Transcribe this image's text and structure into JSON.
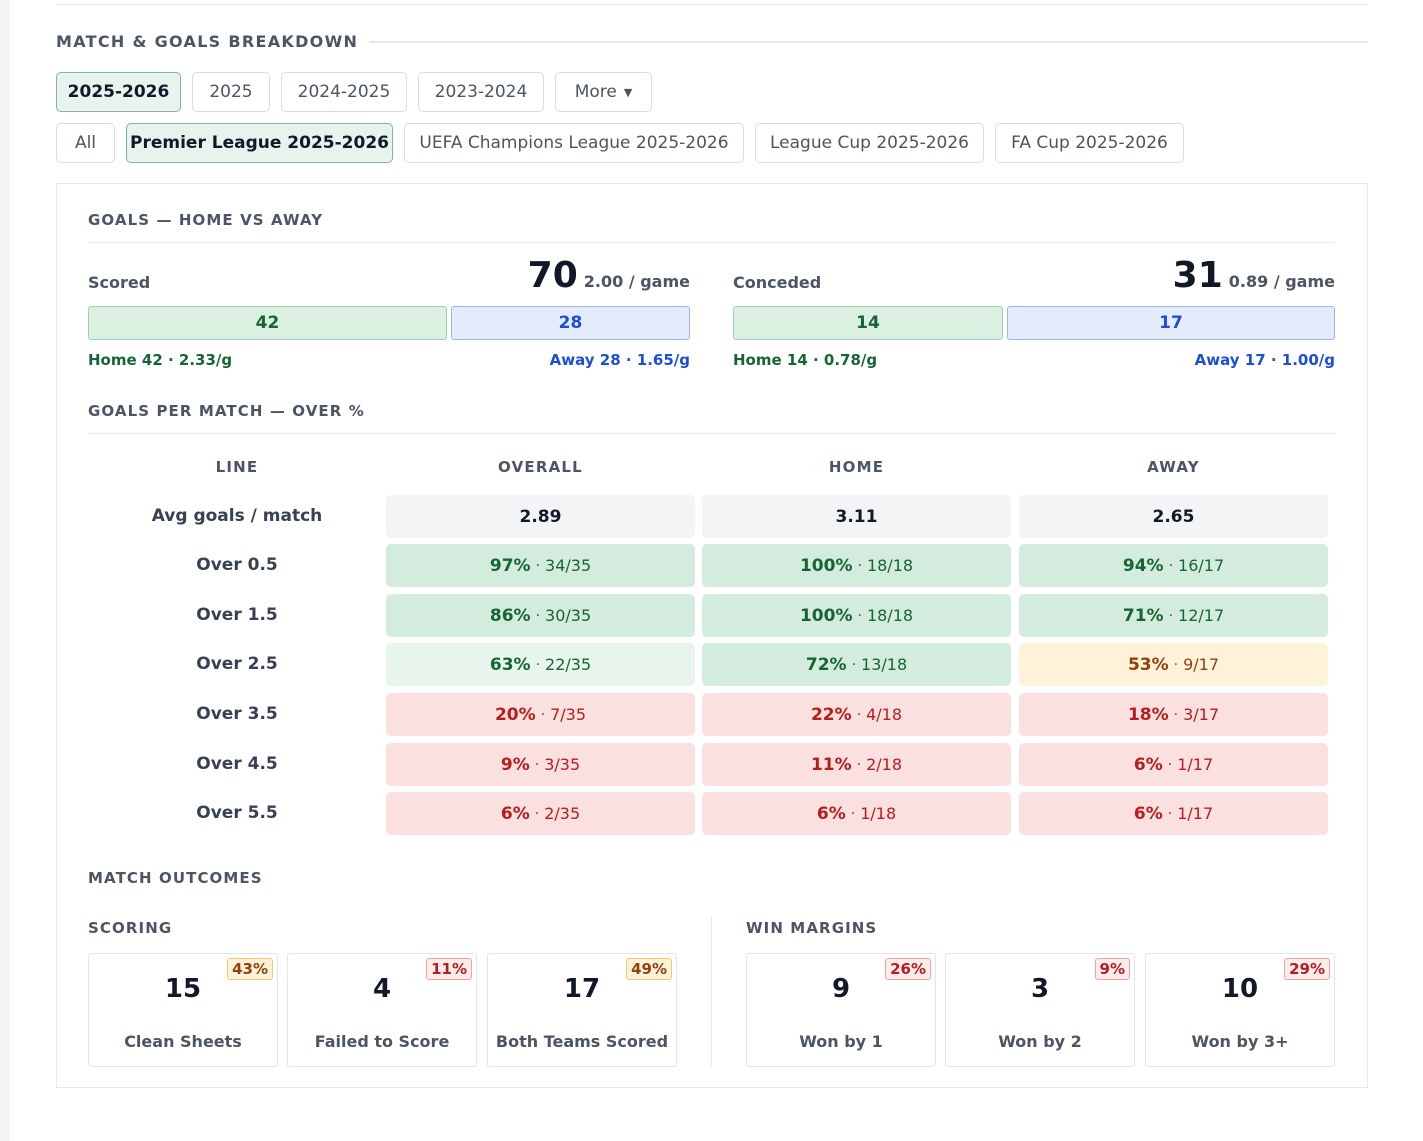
{
  "section": {
    "title": "MATCH & GOALS BREAKDOWN"
  },
  "seasons": [
    {
      "label": "2025-2026",
      "active": true
    },
    {
      "label": "2025",
      "active": false
    },
    {
      "label": "2024-2025",
      "active": false
    },
    {
      "label": "2023-2024",
      "active": false
    },
    {
      "label": "More",
      "active": false
    }
  ],
  "competitions": [
    {
      "label": "All",
      "active": false
    },
    {
      "label": "Premier League 2025-2026",
      "active": true
    },
    {
      "label": "UEFA Champions League 2025-2026",
      "active": false
    },
    {
      "label": "League Cup 2025-2026",
      "active": false
    },
    {
      "label": "FA Cup 2025-2026",
      "active": false
    }
  ],
  "home_away": {
    "title": "GOALS — HOME VS AWAY",
    "scored": {
      "label": "Scored",
      "total": "70",
      "per_game": "2.00 / game",
      "home": "42",
      "away": "28",
      "home_share": 0.6,
      "home_note": "Home 42 · 2.33/g",
      "away_note": "Away 28 · 1.65/g"
    },
    "conceded": {
      "label": "Conceded",
      "total": "31",
      "per_game": "0.89 / game",
      "home": "14",
      "away": "17",
      "home_share": 0.452,
      "home_note": "Home 14 · 0.78/g",
      "away_note": "Away 17 · 1.00/g"
    }
  },
  "over_table": {
    "title": "GOALS PER MATCH — OVER %",
    "headers": [
      "LINE",
      "OVERALL",
      "HOME",
      "AWAY"
    ],
    "avg": {
      "label": "Avg goals / match",
      "overall": "2.89",
      "home": "3.11",
      "away": "2.65"
    },
    "rows": [
      {
        "label": "Over 0.5",
        "overall": {
          "pct": "97%",
          "frac": "34/35",
          "tone": "green-strong"
        },
        "home": {
          "pct": "100%",
          "frac": "18/18",
          "tone": "green-strong"
        },
        "away": {
          "pct": "94%",
          "frac": "16/17",
          "tone": "green-strong"
        }
      },
      {
        "label": "Over 1.5",
        "overall": {
          "pct": "86%",
          "frac": "30/35",
          "tone": "green-strong"
        },
        "home": {
          "pct": "100%",
          "frac": "18/18",
          "tone": "green-strong"
        },
        "away": {
          "pct": "71%",
          "frac": "12/17",
          "tone": "green-strong"
        }
      },
      {
        "label": "Over 2.5",
        "overall": {
          "pct": "63%",
          "frac": "22/35",
          "tone": "green-light"
        },
        "home": {
          "pct": "72%",
          "frac": "13/18",
          "tone": "green-strong"
        },
        "away": {
          "pct": "53%",
          "frac": "9/17",
          "tone": "yellow"
        }
      },
      {
        "label": "Over 3.5",
        "overall": {
          "pct": "20%",
          "frac": "7/35",
          "tone": "red"
        },
        "home": {
          "pct": "22%",
          "frac": "4/18",
          "tone": "red"
        },
        "away": {
          "pct": "18%",
          "frac": "3/17",
          "tone": "red"
        }
      },
      {
        "label": "Over 4.5",
        "overall": {
          "pct": "9%",
          "frac": "3/35",
          "tone": "red"
        },
        "home": {
          "pct": "11%",
          "frac": "2/18",
          "tone": "red"
        },
        "away": {
          "pct": "6%",
          "frac": "1/17",
          "tone": "red"
        }
      },
      {
        "label": "Over 5.5",
        "overall": {
          "pct": "6%",
          "frac": "2/35",
          "tone": "red"
        },
        "home": {
          "pct": "6%",
          "frac": "1/18",
          "tone": "red"
        },
        "away": {
          "pct": "6%",
          "frac": "1/17",
          "tone": "red"
        }
      }
    ]
  },
  "outcomes": {
    "title": "MATCH OUTCOMES",
    "scoring": {
      "title": "SCORING",
      "items": [
        {
          "value": "15",
          "label": "Clean Sheets",
          "badge": "43%",
          "tone": "yellow"
        },
        {
          "value": "4",
          "label": "Failed to Score",
          "badge": "11%",
          "tone": "red"
        },
        {
          "value": "17",
          "label": "Both Teams Scored",
          "badge": "49%",
          "tone": "yellow"
        }
      ]
    },
    "margins": {
      "title": "WIN MARGINS",
      "items": [
        {
          "value": "9",
          "label": "Won by 1",
          "badge": "26%",
          "tone": "red"
        },
        {
          "value": "3",
          "label": "Won by 2",
          "badge": "9%",
          "tone": "red"
        },
        {
          "value": "10",
          "label": "Won by 3+",
          "badge": "29%",
          "tone": "red"
        }
      ]
    }
  }
}
